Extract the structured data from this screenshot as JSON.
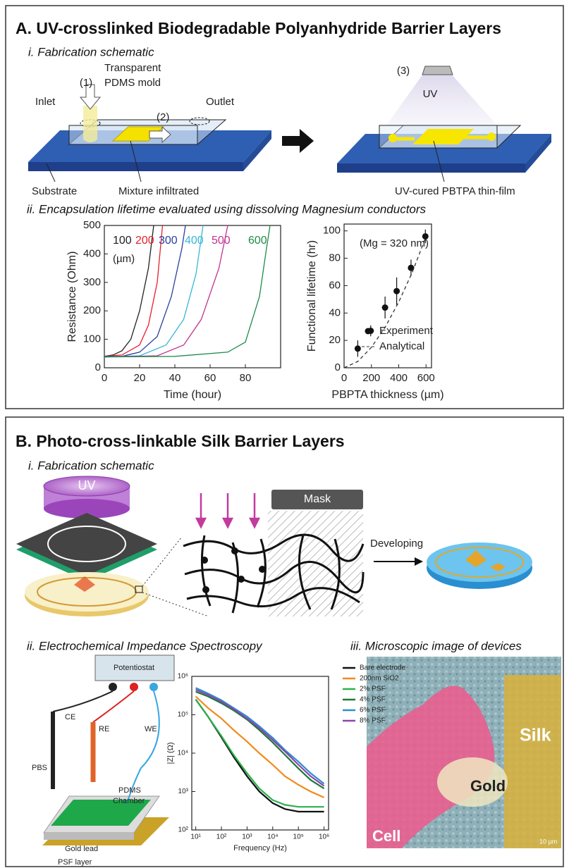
{
  "panel_a": {
    "title": "A. UV-crosslinked Biodegradable Polyanhydride Barrier Layers",
    "schematic": {
      "heading": "i. Fabrication schematic",
      "mold_line_1": "Transparent",
      "mold_line_2": "PDMS mold",
      "step_1": "(1)",
      "step_2": "(2)",
      "step_3": "(3)",
      "inlet": "Inlet",
      "outlet": "Outlet",
      "uv": "UV",
      "substrate": "Substrate",
      "mixture": "Mixture infiltrated",
      "film": "UV-cured PBTPA thin-film"
    },
    "plots_heading": "ii. Encapsulation lifetime evaluated using dissolving Magnesium conductors"
  },
  "panel_b": {
    "title": "B. Photo-cross-linkable Silk Barrier Layers",
    "schematic": {
      "heading": "i. Fabrication schematic",
      "uv": "UV",
      "mask": "Mask",
      "developing": "Developing"
    },
    "eis": {
      "heading": "ii. Electrochemical Impedance Spectroscopy",
      "potentiostat": "Potentiostat",
      "ce": "CE",
      "re": "RE",
      "we": "WE",
      "pbs": "PBS",
      "pdms_line_1": "PDMS",
      "pdms_line_2": "Chamber",
      "gold_lead": "Gold lead",
      "psf_layer": "PSF layer"
    },
    "microscopy": {
      "heading": "iii. Microscopic image of devices",
      "silk": "Silk",
      "gold": "Gold",
      "cell": "Cell",
      "scale_bar": "10 µm"
    }
  },
  "chart_data": [
    {
      "type": "line",
      "x_label": "Time (hour)",
      "y_label": "Resistance (Ohm)",
      "annotation": "(µm)",
      "legend": "top",
      "xlim": [
        0,
        100
      ],
      "xticks": [
        0,
        20,
        40,
        60,
        80
      ],
      "ylim": [
        0,
        500
      ],
      "yticks": [
        0,
        100,
        200,
        300,
        400,
        500
      ],
      "series": [
        {
          "name": "100",
          "color": "#222222",
          "x": [
            0,
            5,
            10,
            15,
            20,
            25,
            28
          ],
          "values": [
            40,
            45,
            60,
            100,
            200,
            350,
            500
          ]
        },
        {
          "name": "200",
          "color": "#e8202a",
          "x": [
            0,
            10,
            20,
            25,
            30,
            33
          ],
          "values": [
            40,
            45,
            80,
            150,
            300,
            500
          ]
        },
        {
          "name": "300",
          "color": "#2a3f9d",
          "x": [
            0,
            10,
            20,
            30,
            38,
            44,
            46
          ],
          "values": [
            40,
            40,
            55,
            110,
            250,
            420,
            500
          ]
        },
        {
          "name": "400",
          "color": "#38b6d8",
          "x": [
            0,
            20,
            35,
            45,
            52,
            56
          ],
          "values": [
            38,
            42,
            80,
            170,
            330,
            500
          ]
        },
        {
          "name": "500",
          "color": "#c0338f",
          "x": [
            0,
            30,
            45,
            55,
            65,
            70
          ],
          "values": [
            38,
            42,
            80,
            170,
            350,
            500
          ]
        },
        {
          "name": "600",
          "color": "#1f8a4a",
          "x": [
            0,
            40,
            70,
            80,
            88,
            92,
            94
          ],
          "values": [
            38,
            40,
            55,
            90,
            250,
            420,
            500
          ]
        }
      ]
    },
    {
      "type": "scatter",
      "x_label": "PBPTA thickness (µm)",
      "y_label": "Functional lifetime (hr)",
      "annotation": "(Mg = 320 nm)",
      "legend": "lower right",
      "xlim": [
        0,
        640
      ],
      "xticks": [
        0,
        200,
        400,
        600
      ],
      "ylim": [
        0,
        105
      ],
      "yticks": [
        0,
        20,
        40,
        60,
        80,
        100
      ],
      "series": [
        {
          "name": "Experiment",
          "color": "#111111",
          "x": [
            100,
            195,
            300,
            385,
            490,
            595
          ],
          "values": [
            14,
            27,
            44,
            56,
            73,
            96
          ],
          "errors": [
            6,
            4,
            8,
            10,
            6,
            5
          ]
        },
        {
          "name": "Analytical",
          "color": "#333333",
          "dash": true,
          "x": [
            0,
            100,
            200,
            300,
            400,
            500,
            600
          ],
          "values": [
            0,
            4.6,
            15,
            29.5,
            48,
            70,
            96
          ]
        }
      ]
    },
    {
      "type": "line",
      "x_label": "Frequency (Hz)",
      "y_label": "|Z| (Ω)",
      "legend": "upper right",
      "xscale": "log",
      "yscale": "log",
      "xlim": [
        7,
        1500000
      ],
      "ylim": [
        100,
        1000000
      ],
      "xticks": [
        {
          "value": 10,
          "label": "10¹"
        },
        {
          "value": 100,
          "label": "10²"
        },
        {
          "value": 1000,
          "label": "10³"
        },
        {
          "value": 10000,
          "label": "10⁴"
        },
        {
          "value": 100000,
          "label": "10⁵"
        },
        {
          "value": 1000000,
          "label": "10⁶"
        }
      ],
      "yticks": [
        {
          "value": 100,
          "label": "10²"
        },
        {
          "value": 1000,
          "label": "10³"
        },
        {
          "value": 10000,
          "label": "10⁴"
        },
        {
          "value": 100000,
          "label": "10⁵"
        },
        {
          "value": 1000000,
          "label": "10⁶"
        }
      ],
      "x": [
        10,
        30,
        100,
        300,
        1000,
        3000,
        10000,
        30000,
        100000,
        300000,
        1000000
      ],
      "series": [
        {
          "name": "Bare electrode",
          "color": "#111111",
          "values": [
            250000,
            90000,
            26000,
            8000,
            2500,
            1000,
            500,
            350,
            300,
            300,
            300
          ]
        },
        {
          "name": "200nm SiO2",
          "color": "#f28a1e",
          "values": [
            300000,
            150000,
            80000,
            40000,
            20000,
            10000,
            5000,
            2500,
            1500,
            1000,
            700
          ]
        },
        {
          "name": "2% PSF",
          "color": "#2bb24c",
          "values": [
            250000,
            90000,
            28000,
            9000,
            3000,
            1200,
            600,
            450,
            400,
            400,
            400
          ]
        },
        {
          "name": "4% PSF",
          "color": "#1b7a3a",
          "values": [
            400000,
            300000,
            200000,
            130000,
            75000,
            40000,
            19000,
            9000,
            4000,
            2000,
            1200
          ]
        },
        {
          "name": "6% PSF",
          "color": "#2a8fd0",
          "values": [
            500000,
            360000,
            240000,
            150000,
            90000,
            50000,
            25000,
            12000,
            6000,
            3000,
            1600
          ]
        },
        {
          "name": "8% PSF",
          "color": "#8e44ad",
          "values": [
            450000,
            330000,
            220000,
            140000,
            80000,
            45000,
            22000,
            11000,
            5000,
            2500,
            1400
          ]
        }
      ]
    }
  ]
}
